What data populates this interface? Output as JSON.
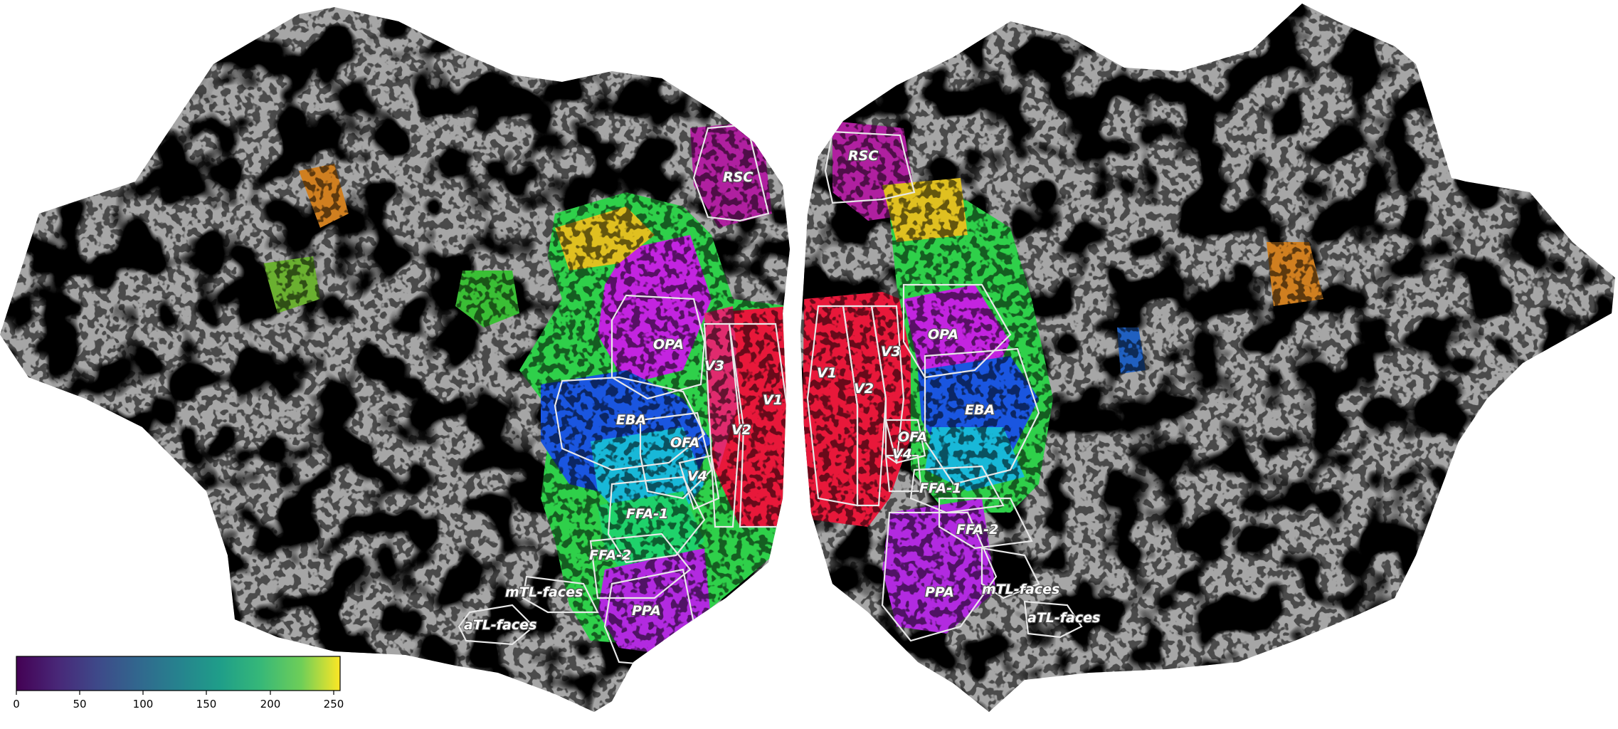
{
  "figure": {
    "description_free": true,
    "hemispheres": [
      "left",
      "right"
    ]
  },
  "roi_labels": {
    "left": [
      "RSC",
      "OPA",
      "V3",
      "V1",
      "EBA",
      "OFA",
      "V2",
      "V4",
      "FFA-1",
      "FFA-2",
      "mTL-faces",
      "aTL-faces",
      "PPA"
    ],
    "right": [
      "RSC",
      "OPA",
      "V3",
      "V1",
      "V2",
      "EBA",
      "OFA",
      "V4",
      "FFA-1",
      "FFA-2",
      "PPA",
      "mTL-faces",
      "aTL-faces"
    ]
  },
  "colorbar": {
    "colormap": "viridis",
    "range": [
      0,
      255
    ],
    "ticks": [
      "0",
      "50",
      "100",
      "150",
      "200",
      "250"
    ]
  },
  "colors": {
    "curvature_light": "#a6a6a6",
    "curvature_dark": "#5c5c5c",
    "roi_outline": "#e8e8e8"
  }
}
